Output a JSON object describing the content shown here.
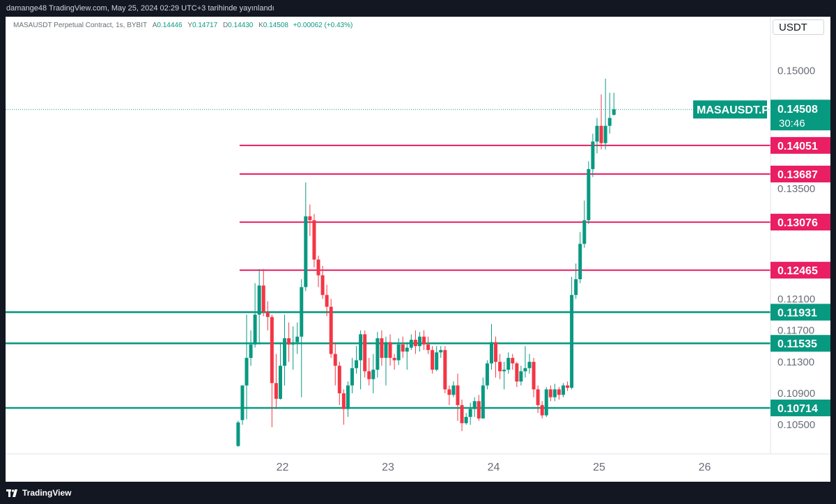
{
  "header": {
    "text": "damange48 TradingView.com, May 25, 2024 02:29 UTC+3 tarihinde yayınlandı"
  },
  "legend": {
    "symbol": "MASAUSDT Perpetual Contract, 1s, BYBIT",
    "open_label": "A",
    "open": "0.14446",
    "high_label": "Y",
    "high": "0.14717",
    "low_label": "D",
    "low": "0.14430",
    "close_label": "K",
    "close": "0.14508",
    "change": "+0.00062 (+0.43%)"
  },
  "currency_button": "USDT",
  "footer": {
    "brand": "TradingView"
  },
  "colors": {
    "up": "#089981",
    "down": "#f23645",
    "resistance": "#e91e63",
    "support": "#089981",
    "background": "#ffffff"
  },
  "chart_data": {
    "type": "candlestick",
    "symbol_label": "MASAUSDT.P",
    "last_price": "0.14508",
    "countdown": "30:46",
    "x_ticks": [
      "22",
      "23",
      "24",
      "25",
      "26"
    ],
    "y_ticks": [
      "0.10500",
      "0.10900",
      "0.11300",
      "0.11700",
      "0.12100",
      "0.13500",
      "0.15000"
    ],
    "ylim": [
      0.1013,
      0.1551
    ],
    "horizontal_lines": [
      {
        "value": "0.14051",
        "kind": "resistance",
        "start": 21.6
      },
      {
        "value": "0.13687",
        "kind": "resistance",
        "start": 21.6
      },
      {
        "value": "0.13076",
        "kind": "resistance",
        "start": 21.6
      },
      {
        "value": "0.12465",
        "kind": "resistance",
        "start": 21.6
      },
      {
        "value": "0.11931",
        "kind": "support",
        "start": null
      },
      {
        "value": "0.11535",
        "kind": "support",
        "start": null
      },
      {
        "value": "0.10714",
        "kind": "support",
        "start": null
      }
    ],
    "candles": [
      [
        21.58,
        0.1023,
        0.1053,
        0.1022,
        0.1055
      ],
      [
        21.62,
        0.1056,
        0.11,
        0.105,
        0.11
      ],
      [
        21.66,
        0.11,
        0.1135,
        0.1057,
        0.119
      ],
      [
        21.7,
        0.1135,
        0.1152,
        0.1125,
        0.117
      ],
      [
        21.74,
        0.1152,
        0.119,
        0.1148,
        0.123
      ],
      [
        21.78,
        0.119,
        0.1227,
        0.1152,
        0.1248
      ],
      [
        21.82,
        0.1227,
        0.1193,
        0.1188,
        0.1248
      ],
      [
        21.86,
        0.1193,
        0.1187,
        0.117,
        0.1207
      ],
      [
        21.9,
        0.1187,
        0.1103,
        0.1047,
        0.119
      ],
      [
        21.94,
        0.1103,
        0.1083,
        0.107,
        0.114
      ],
      [
        21.98,
        0.1083,
        0.1125,
        0.1082,
        0.1155
      ],
      [
        22.02,
        0.1125,
        0.116,
        0.11,
        0.119
      ],
      [
        22.06,
        0.116,
        0.1152,
        0.113,
        0.118
      ],
      [
        22.1,
        0.1152,
        0.1155,
        0.112,
        0.1175
      ],
      [
        22.14,
        0.1155,
        0.1162,
        0.114,
        0.118
      ],
      [
        22.18,
        0.1162,
        0.1225,
        0.1085,
        0.1235
      ],
      [
        22.22,
        0.1225,
        0.1315,
        0.122,
        0.1358
      ],
      [
        22.26,
        0.1315,
        0.131,
        0.129,
        0.133
      ],
      [
        22.3,
        0.131,
        0.126,
        0.125,
        0.1318
      ],
      [
        22.34,
        0.126,
        0.124,
        0.1225,
        0.1265
      ],
      [
        22.38,
        0.124,
        0.1215,
        0.121,
        0.1252
      ],
      [
        22.42,
        0.1215,
        0.12,
        0.1188,
        0.1228
      ],
      [
        22.46,
        0.12,
        0.114,
        0.1135,
        0.121
      ],
      [
        22.5,
        0.114,
        0.1125,
        0.11,
        0.1155
      ],
      [
        22.54,
        0.1125,
        0.109,
        0.1075,
        0.113
      ],
      [
        22.58,
        0.109,
        0.107,
        0.105,
        0.1095
      ],
      [
        22.62,
        0.107,
        0.11,
        0.106,
        0.1105
      ],
      [
        22.66,
        0.11,
        0.1122,
        0.109,
        0.1135
      ],
      [
        22.7,
        0.1122,
        0.1132,
        0.1115,
        0.115
      ],
      [
        22.74,
        0.1132,
        0.1165,
        0.1095,
        0.117
      ],
      [
        22.78,
        0.1165,
        0.1118,
        0.111,
        0.117
      ],
      [
        22.82,
        0.1118,
        0.1108,
        0.11,
        0.1135
      ],
      [
        22.86,
        0.1108,
        0.112,
        0.109,
        0.114
      ],
      [
        22.9,
        0.112,
        0.116,
        0.111,
        0.1168
      ],
      [
        22.94,
        0.116,
        0.1135,
        0.1125,
        0.117
      ],
      [
        22.98,
        0.1135,
        0.1155,
        0.11,
        0.1162
      ],
      [
        23.02,
        0.1155,
        0.1135,
        0.1125,
        0.1165
      ],
      [
        23.06,
        0.1135,
        0.1132,
        0.112,
        0.114
      ],
      [
        23.1,
        0.1132,
        0.1152,
        0.1126,
        0.116
      ],
      [
        23.14,
        0.1152,
        0.1143,
        0.1135,
        0.1162
      ],
      [
        23.18,
        0.1143,
        0.1148,
        0.112,
        0.1155
      ],
      [
        23.22,
        0.1148,
        0.1158,
        0.1145,
        0.1165
      ],
      [
        23.26,
        0.1158,
        0.115,
        0.114,
        0.117
      ],
      [
        23.3,
        0.115,
        0.1162,
        0.1143,
        0.1168
      ],
      [
        23.34,
        0.1162,
        0.1152,
        0.1145,
        0.117
      ],
      [
        23.38,
        0.1152,
        0.1145,
        0.114,
        0.1162
      ],
      [
        23.42,
        0.1145,
        0.112,
        0.1115,
        0.115
      ],
      [
        23.46,
        0.112,
        0.1142,
        0.1118,
        0.115
      ],
      [
        23.5,
        0.1142,
        0.1145,
        0.1135,
        0.115
      ],
      [
        23.54,
        0.1145,
        0.1095,
        0.109,
        0.115
      ],
      [
        23.58,
        0.1095,
        0.1088,
        0.1075,
        0.11
      ],
      [
        23.62,
        0.1088,
        0.11,
        0.1085,
        0.1105
      ],
      [
        23.66,
        0.11,
        0.1075,
        0.1055,
        0.1115
      ],
      [
        23.7,
        0.1075,
        0.1052,
        0.1042,
        0.1082
      ],
      [
        23.74,
        0.1052,
        0.106,
        0.105,
        0.1065
      ],
      [
        23.78,
        0.106,
        0.107,
        0.105,
        0.1078
      ],
      [
        23.82,
        0.107,
        0.108,
        0.106,
        0.1085
      ],
      [
        23.86,
        0.108,
        0.1058,
        0.1055,
        0.1088
      ],
      [
        23.9,
        0.1058,
        0.11,
        0.1058,
        0.111
      ],
      [
        23.94,
        0.11,
        0.1128,
        0.1095,
        0.1132
      ],
      [
        23.98,
        0.1128,
        0.1155,
        0.112,
        0.1178
      ],
      [
        24.02,
        0.1155,
        0.113,
        0.111,
        0.1162
      ],
      [
        24.06,
        0.113,
        0.1118,
        0.1108,
        0.114
      ],
      [
        24.1,
        0.1118,
        0.112,
        0.1095,
        0.113
      ],
      [
        24.14,
        0.112,
        0.1135,
        0.1115,
        0.1142
      ],
      [
        24.18,
        0.1135,
        0.1128,
        0.112,
        0.114
      ],
      [
        24.22,
        0.1128,
        0.1105,
        0.1098,
        0.113
      ],
      [
        24.26,
        0.1105,
        0.1118,
        0.11,
        0.1125
      ],
      [
        24.3,
        0.1118,
        0.1122,
        0.111,
        0.115
      ],
      [
        24.34,
        0.1122,
        0.113,
        0.1115,
        0.114
      ],
      [
        24.38,
        0.113,
        0.1095,
        0.1085,
        0.1135
      ],
      [
        24.42,
        0.1095,
        0.1075,
        0.1065,
        0.11
      ],
      [
        24.46,
        0.1075,
        0.1062,
        0.1058,
        0.108
      ],
      [
        24.5,
        0.1062,
        0.1095,
        0.106,
        0.1098
      ],
      [
        24.54,
        0.1095,
        0.1085,
        0.108,
        0.11
      ],
      [
        24.58,
        0.1085,
        0.1095,
        0.108,
        0.1102
      ],
      [
        24.62,
        0.1095,
        0.1088,
        0.1082,
        0.1098
      ],
      [
        24.66,
        0.1088,
        0.11,
        0.1085,
        0.1103
      ],
      [
        24.7,
        0.11,
        0.1097,
        0.1093,
        0.1105
      ],
      [
        24.74,
        0.1097,
        0.1215,
        0.1095,
        0.1238
      ],
      [
        24.78,
        0.1215,
        0.1235,
        0.121,
        0.1255
      ],
      [
        24.82,
        0.1235,
        0.128,
        0.123,
        0.1295
      ],
      [
        24.86,
        0.128,
        0.131,
        0.1275,
        0.1335
      ],
      [
        24.9,
        0.131,
        0.1375,
        0.1305,
        0.1385
      ],
      [
        24.94,
        0.1375,
        0.141,
        0.1365,
        0.142
      ],
      [
        24.98,
        0.141,
        0.143,
        0.1395,
        0.144
      ],
      [
        25.02,
        0.143,
        0.1408,
        0.14,
        0.147
      ],
      [
        25.06,
        0.1408,
        0.143,
        0.14,
        0.149
      ],
      [
        25.1,
        0.143,
        0.144,
        0.142,
        0.1472
      ],
      [
        25.14,
        0.1444,
        0.1451,
        0.1443,
        0.1472
      ]
    ]
  }
}
